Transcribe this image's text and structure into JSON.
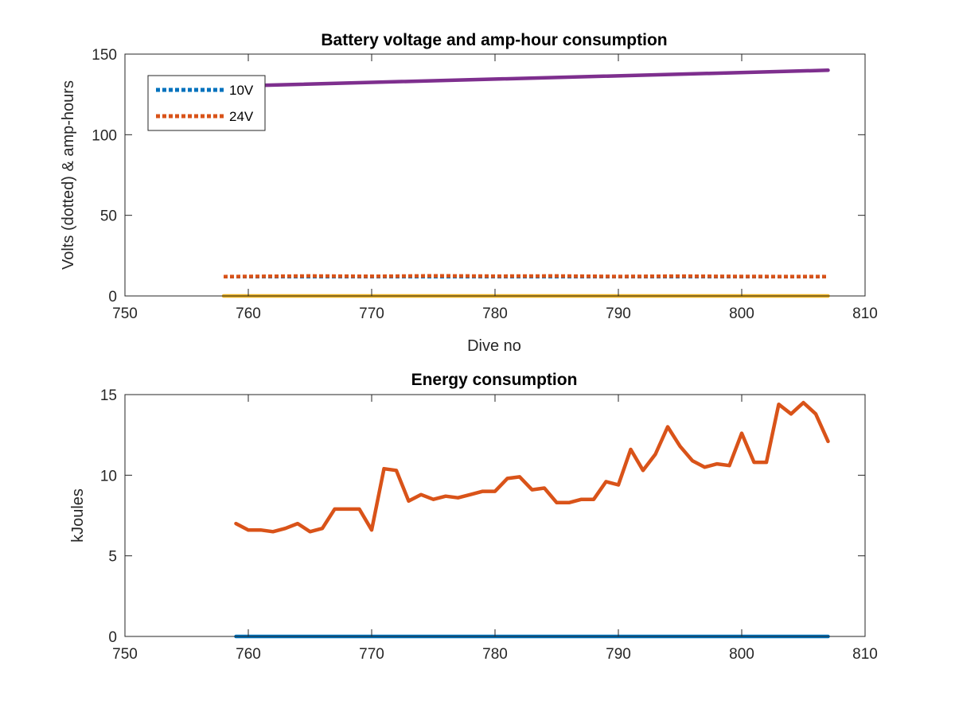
{
  "chart_data": [
    {
      "type": "line",
      "title": "Battery voltage and amp-hour consumption",
      "xlabel": "Dive no",
      "ylabel": "Volts (dotted) & amp-hours",
      "xlim": [
        750,
        810
      ],
      "ylim": [
        0,
        150
      ],
      "xticks": [
        750,
        760,
        770,
        780,
        790,
        800,
        810
      ],
      "yticks": [
        0,
        50,
        100,
        150
      ],
      "legend": {
        "placement": "top-left",
        "entries": [
          "10V",
          "24V"
        ]
      },
      "series": [
        {
          "name": "10V",
          "style": "dotted",
          "color": "#0072BD",
          "x": [
            758,
            807
          ],
          "y": [
            12,
            12
          ]
        },
        {
          "name": "24V",
          "style": "dotted",
          "color": "#D95319",
          "x": [
            758,
            765,
            770,
            775,
            780,
            785,
            790,
            795,
            800,
            807
          ],
          "y": [
            12,
            12.4,
            12.2,
            12.5,
            12.3,
            12.4,
            12.1,
            12.3,
            12.1,
            12
          ]
        },
        {
          "style": "solid",
          "color": "#7E2F8E",
          "x": [
            758,
            807
          ],
          "y": [
            130,
            140
          ]
        },
        {
          "style": "solid",
          "color": "#EDB120",
          "x": [
            758,
            807
          ],
          "y": [
            0,
            0
          ]
        }
      ]
    },
    {
      "type": "line",
      "title": "Energy consumption",
      "xlabel": "",
      "ylabel": "kJoules",
      "xlim": [
        750,
        810
      ],
      "ylim": [
        0,
        15
      ],
      "xticks": [
        750,
        760,
        770,
        780,
        790,
        800,
        810
      ],
      "yticks": [
        0,
        5,
        10,
        15
      ],
      "series": [
        {
          "style": "solid",
          "color": "#D95319",
          "x": [
            759,
            760,
            761,
            762,
            763,
            764,
            765,
            766,
            767,
            768,
            769,
            770,
            771,
            772,
            773,
            774,
            775,
            776,
            777,
            778,
            779,
            780,
            781,
            782,
            783,
            784,
            785,
            786,
            787,
            788,
            789,
            790,
            791,
            792,
            793,
            794,
            795,
            796,
            797,
            798,
            799,
            800,
            801,
            802,
            803,
            804,
            805,
            806,
            807
          ],
          "y": [
            7.0,
            6.6,
            6.6,
            6.5,
            6.7,
            7.0,
            6.5,
            6.7,
            7.9,
            7.9,
            7.9,
            6.6,
            10.4,
            10.3,
            8.4,
            8.8,
            8.5,
            8.7,
            8.6,
            8.8,
            9.0,
            9.0,
            9.8,
            9.9,
            9.1,
            9.2,
            8.3,
            8.3,
            8.5,
            8.5,
            9.6,
            9.4,
            11.6,
            10.3,
            11.3,
            13.0,
            11.8,
            10.9,
            10.5,
            10.7,
            10.6,
            12.6,
            10.8,
            10.8,
            14.4,
            13.8,
            14.5,
            13.8,
            12.1
          ]
        },
        {
          "style": "solid",
          "color": "#0072BD",
          "x": [
            759,
            807
          ],
          "y": [
            0,
            0
          ]
        }
      ]
    }
  ]
}
